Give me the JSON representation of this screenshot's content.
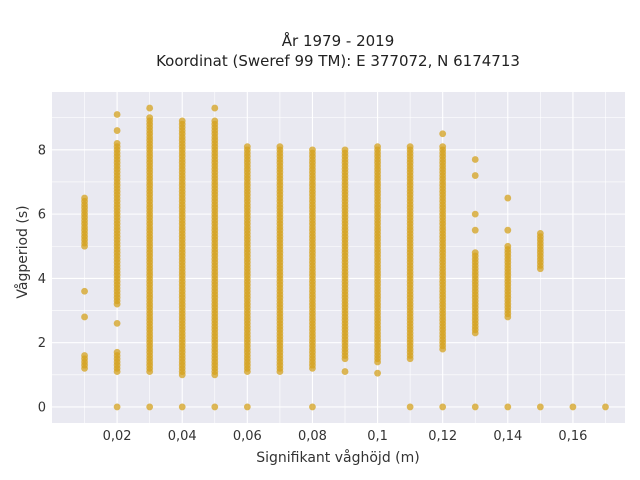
{
  "chart_data": {
    "type": "scatter",
    "title": "År 1979 - 2019",
    "subtitle": "Koordinat (Sweref 99 TM): E 377072, N 6174713",
    "xlabel": "Signifikant våghöjd (m)",
    "ylabel": "Vågperiod (s)",
    "xlim": [
      0.0,
      0.176
    ],
    "ylim": [
      -0.5,
      9.8
    ],
    "x_ticks": [
      0.02,
      0.04,
      0.06,
      0.08,
      0.1,
      0.12,
      0.14,
      0.16
    ],
    "x_tick_labels": [
      "0,02",
      "0,04",
      "0,06",
      "0,08",
      "0,1",
      "0,12",
      "0,14",
      "0,16"
    ],
    "y_ticks": [
      0,
      2,
      4,
      6,
      8
    ],
    "y_tick_labels": [
      "0",
      "2",
      "4",
      "6",
      "8"
    ],
    "grid": true,
    "background": "#e9e9f1",
    "grid_color": "#ffffff",
    "marker_color": "#d4a11e",
    "columns": [
      {
        "x": 0.01,
        "ranges": [
          [
            1.2,
            1.6
          ],
          [
            5.0,
            6.5
          ]
        ],
        "points": [
          2.8,
          3.6
        ]
      },
      {
        "x": 0.02,
        "ranges": [
          [
            1.1,
            1.7
          ],
          [
            3.2,
            8.2
          ]
        ],
        "points": [
          0,
          2.6,
          8.6,
          9.1
        ]
      },
      {
        "x": 0.03,
        "ranges": [
          [
            1.1,
            9.0
          ]
        ],
        "points": [
          0,
          9.3
        ]
      },
      {
        "x": 0.04,
        "ranges": [
          [
            1.0,
            8.9
          ]
        ],
        "points": [
          0
        ]
      },
      {
        "x": 0.05,
        "ranges": [
          [
            1.0,
            8.9
          ]
        ],
        "points": [
          0,
          9.3
        ]
      },
      {
        "x": 0.06,
        "ranges": [
          [
            1.1,
            8.1
          ]
        ],
        "points": [
          0
        ]
      },
      {
        "x": 0.07,
        "ranges": [
          [
            1.1,
            8.1
          ]
        ],
        "points": []
      },
      {
        "x": 0.08,
        "ranges": [
          [
            1.2,
            8.0
          ]
        ],
        "points": [
          0
        ]
      },
      {
        "x": 0.09,
        "ranges": [
          [
            1.5,
            8.0
          ]
        ],
        "points": [
          1.1
        ]
      },
      {
        "x": 0.1,
        "ranges": [
          [
            1.4,
            8.1
          ]
        ],
        "points": [
          1.05
        ]
      },
      {
        "x": 0.11,
        "ranges": [
          [
            1.5,
            8.1
          ]
        ],
        "points": [
          0
        ]
      },
      {
        "x": 0.12,
        "ranges": [
          [
            1.8,
            8.1
          ]
        ],
        "points": [
          0,
          8.5
        ]
      },
      {
        "x": 0.13,
        "ranges": [
          [
            2.3,
            4.8
          ]
        ],
        "points": [
          0,
          5.5,
          6.0,
          7.2,
          7.7
        ]
      },
      {
        "x": 0.14,
        "ranges": [
          [
            2.8,
            5.0
          ]
        ],
        "points": [
          0,
          5.5,
          6.5
        ]
      },
      {
        "x": 0.15,
        "ranges": [
          [
            4.3,
            5.4
          ]
        ],
        "points": [
          0
        ]
      },
      {
        "x": 0.16,
        "ranges": [],
        "points": [
          0
        ]
      },
      {
        "x": 0.17,
        "ranges": [],
        "points": [
          0
        ]
      }
    ]
  }
}
